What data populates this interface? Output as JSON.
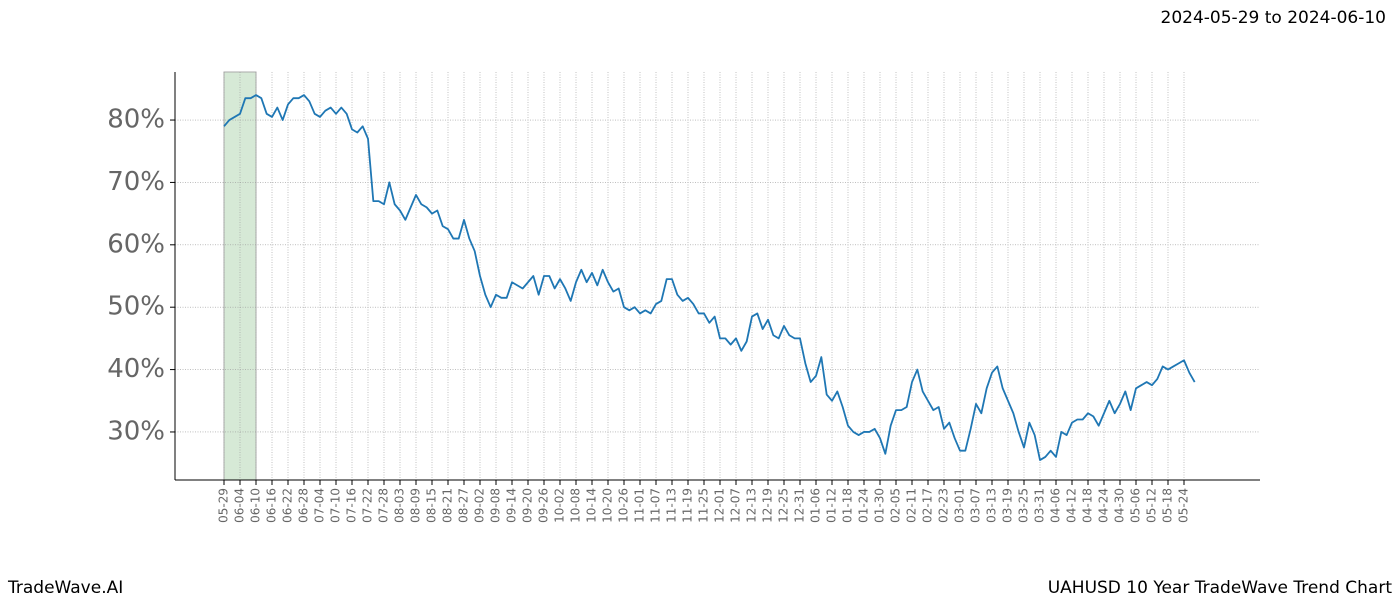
{
  "chart_data": {
    "type": "line",
    "title": "2024-05-29 to 2024-06-10",
    "footer_left": "TradeWave.AI",
    "footer_right": "UAHUSD 10 Year TradeWave Trend Chart",
    "highlight_range": [
      "05-29",
      "06-10"
    ],
    "highlight_color": "#d6e9d6",
    "color": "#1f77b4",
    "grid": true,
    "categories": [
      "05-29",
      null,
      null,
      "06-04",
      null,
      null,
      "06-10",
      null,
      null,
      "06-16",
      null,
      null,
      "06-22",
      null,
      null,
      "06-28",
      null,
      null,
      "07-04",
      null,
      null,
      "07-10",
      null,
      null,
      "07-16",
      null,
      null,
      "07-22",
      null,
      null,
      "07-28",
      null,
      null,
      "08-03",
      null,
      null,
      "08-09",
      null,
      null,
      "08-15",
      null,
      null,
      "08-21",
      null,
      null,
      "08-27",
      null,
      null,
      "09-02",
      null,
      null,
      "09-08",
      null,
      null,
      "09-14",
      null,
      null,
      "09-20",
      null,
      null,
      "09-26",
      null,
      null,
      "10-02",
      null,
      null,
      "10-08",
      null,
      null,
      "10-14",
      null,
      null,
      "10-20",
      null,
      null,
      "10-26",
      null,
      null,
      "11-01",
      null,
      null,
      "11-07",
      null,
      null,
      "11-13",
      null,
      null,
      "11-19",
      null,
      null,
      "11-25",
      null,
      null,
      "12-01",
      null,
      null,
      "12-07",
      null,
      null,
      "12-13",
      null,
      null,
      "12-19",
      null,
      null,
      "12-25",
      null,
      null,
      "12-31",
      null,
      null,
      "01-06",
      null,
      null,
      "01-12",
      null,
      null,
      "01-18",
      null,
      null,
      "01-24",
      null,
      null,
      "01-30",
      null,
      null,
      "02-05",
      null,
      null,
      "02-11",
      null,
      null,
      "02-17",
      null,
      null,
      "02-23",
      null,
      null,
      "03-01",
      null,
      null,
      "03-07",
      null,
      null,
      "03-13",
      null,
      null,
      "03-19",
      null,
      null,
      "03-25",
      null,
      null,
      "03-31",
      null,
      null,
      "04-06",
      null,
      null,
      "04-12",
      null,
      null,
      "04-18",
      null,
      null,
      "04-24",
      null,
      null,
      "04-30",
      null,
      null,
      "05-06",
      null,
      null,
      "05-12",
      null,
      null,
      "05-18",
      null,
      null,
      "05-24",
      null,
      null
    ],
    "values": [
      79,
      80,
      80.5,
      81,
      83.5,
      83.5,
      84,
      83.5,
      81,
      80.5,
      82,
      80,
      82.5,
      83.5,
      83.5,
      84,
      83,
      81,
      80.5,
      81.5,
      82,
      81,
      82,
      81,
      78.5,
      78,
      79,
      77,
      67,
      67,
      66.5,
      70,
      66.5,
      65.5,
      64,
      66,
      68,
      66.5,
      66,
      65,
      65.5,
      63,
      62.5,
      61,
      61,
      64,
      61,
      59,
      55,
      52,
      50,
      52,
      51.5,
      51.5,
      54,
      53.5,
      53,
      54,
      55,
      52,
      55,
      55,
      53,
      54.5,
      53,
      51,
      54,
      56,
      54,
      55.5,
      53.5,
      56,
      54,
      52.5,
      53,
      50,
      49.5,
      50,
      49,
      49.5,
      49,
      50.5,
      51,
      54.5,
      54.5,
      52,
      51,
      51.5,
      50.5,
      49,
      49,
      47.5,
      48.5,
      45,
      45,
      44,
      45,
      43,
      44.5,
      48.5,
      49,
      46.5,
      48,
      45.5,
      45,
      47,
      45.5,
      45,
      45,
      41,
      38,
      39,
      42,
      36,
      35,
      36.5,
      34,
      31,
      30,
      29.5,
      30,
      30,
      30.5,
      29,
      26.5,
      31,
      33.5,
      33.5,
      34,
      38,
      40,
      36.5,
      35,
      33.5,
      34,
      30.5,
      31.5,
      29,
      27,
      27,
      30.5,
      34.5,
      33,
      37,
      39.5,
      40.5,
      37,
      35,
      33,
      30,
      27.5,
      31.5,
      29.5,
      25.5,
      26,
      27,
      26,
      30,
      29.5,
      31.5,
      32,
      32,
      33,
      32.5,
      31,
      33,
      35,
      33,
      34.5,
      36.5,
      33.5,
      37,
      37.5,
      38,
      37.5,
      38.5,
      40.5,
      40,
      40.5,
      41,
      41.5,
      39.5,
      38
    ],
    "ylim": [
      22.3,
      87.7
    ],
    "yticks": [
      {
        "value": 30,
        "label": "30%"
      },
      {
        "value": 40,
        "label": "40%"
      },
      {
        "value": 50,
        "label": "50%"
      },
      {
        "value": 60,
        "label": "60%"
      },
      {
        "value": 70,
        "label": "70%"
      },
      {
        "value": 80,
        "label": "80%"
      }
    ]
  }
}
